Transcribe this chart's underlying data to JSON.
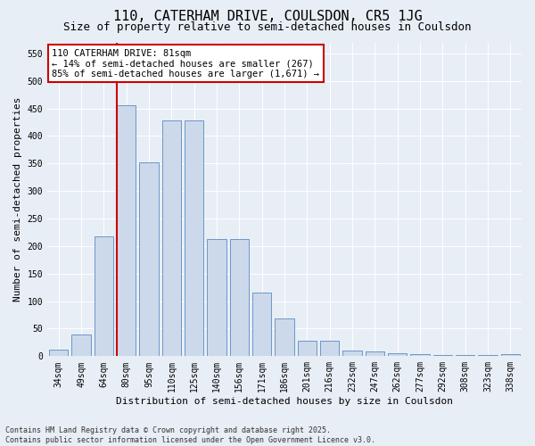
{
  "title_line1": "110, CATERHAM DRIVE, COULSDON, CR5 1JG",
  "title_line2": "Size of property relative to semi-detached houses in Coulsdon",
  "xlabel": "Distribution of semi-detached houses by size in Coulsdon",
  "ylabel": "Number of semi-detached properties",
  "categories": [
    "34sqm",
    "49sqm",
    "64sqm",
    "80sqm",
    "95sqm",
    "110sqm",
    "125sqm",
    "140sqm",
    "156sqm",
    "171sqm",
    "186sqm",
    "201sqm",
    "216sqm",
    "232sqm",
    "247sqm",
    "262sqm",
    "277sqm",
    "292sqm",
    "308sqm",
    "323sqm",
    "338sqm"
  ],
  "values": [
    12,
    40,
    218,
    455,
    352,
    428,
    428,
    213,
    213,
    115,
    68,
    28,
    28,
    10,
    8,
    5,
    3,
    2,
    2,
    2,
    3
  ],
  "bar_color": "#ccd9ea",
  "bar_edge_color": "#6b96c8",
  "vline_color": "#cc0000",
  "vline_x_index": 3,
  "annotation_text": "110 CATERHAM DRIVE: 81sqm\n← 14% of semi-detached houses are smaller (267)\n85% of semi-detached houses are larger (1,671) →",
  "annotation_box_color": "#ffffff",
  "annotation_box_edge_color": "#cc0000",
  "ylim": [
    0,
    570
  ],
  "yticks": [
    0,
    50,
    100,
    150,
    200,
    250,
    300,
    350,
    400,
    450,
    500,
    550
  ],
  "background_color": "#e8eef5",
  "footer_text": "Contains HM Land Registry data © Crown copyright and database right 2025.\nContains public sector information licensed under the Open Government Licence v3.0.",
  "title_fontsize": 11,
  "subtitle_fontsize": 9,
  "axis_label_fontsize": 8,
  "tick_fontsize": 7,
  "annotation_fontsize": 7.5,
  "footer_fontsize": 6
}
